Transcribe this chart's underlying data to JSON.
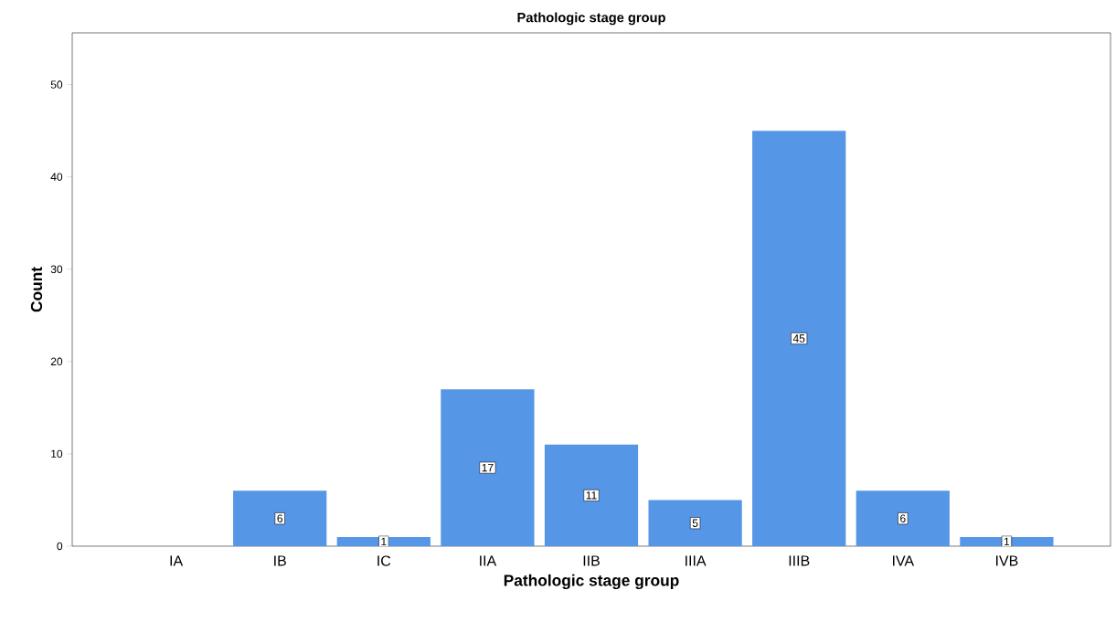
{
  "chart_data": {
    "type": "bar",
    "title": "Pathologic stage group",
    "xlabel": "Pathologic stage group",
    "ylabel": "Count",
    "categories": [
      "IA",
      "IB",
      "IC",
      "IIA",
      "IIB",
      "IIIA",
      "IIIB",
      "IVA",
      "IVB"
    ],
    "values": [
      0,
      6,
      1,
      17,
      11,
      5,
      45,
      6,
      1
    ],
    "value_labels": [
      null,
      "6",
      "1",
      "17",
      "11",
      "5",
      "45",
      "6",
      "1"
    ],
    "color": "#5596e6",
    "ylim": [
      0,
      55.6
    ],
    "yticks": [
      0,
      10,
      20,
      30,
      40,
      50
    ]
  }
}
